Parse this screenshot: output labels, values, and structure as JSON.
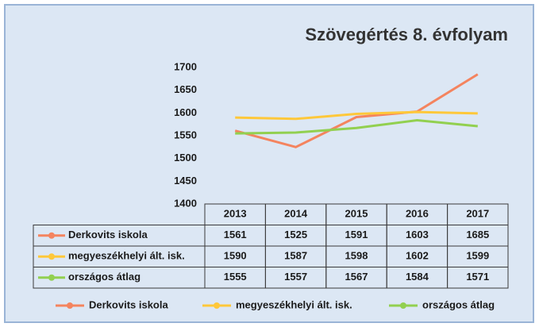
{
  "chart_data": {
    "type": "line",
    "title": "Szövegértés 8. évfolyam",
    "categories": [
      "2013",
      "2014",
      "2015",
      "2016",
      "2017"
    ],
    "series": [
      {
        "name": "Derkovits iskola",
        "color": "#f4845f",
        "values": [
          1561,
          1525,
          1591,
          1603,
          1685
        ]
      },
      {
        "name": "megyeszékhelyi ált. isk.",
        "color": "#ffc83a",
        "values": [
          1590,
          1587,
          1598,
          1602,
          1599
        ]
      },
      {
        "name": "országos átlag",
        "color": "#92d050",
        "values": [
          1555,
          1557,
          1567,
          1584,
          1571
        ]
      }
    ],
    "ylim": [
      1400,
      1700
    ],
    "yticks": [
      1400,
      1450,
      1500,
      1550,
      1600,
      1650,
      1700
    ],
    "grid": false,
    "data_table": true,
    "legend": "bottom"
  }
}
